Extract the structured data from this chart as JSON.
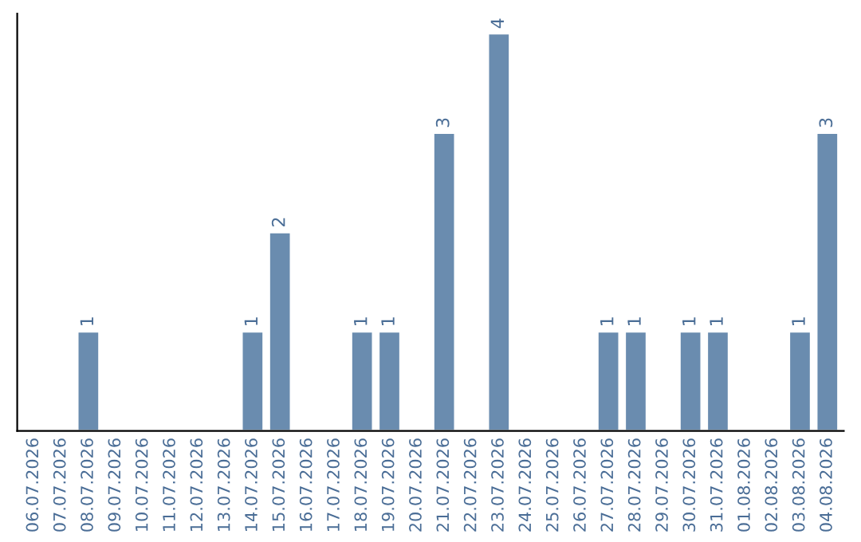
{
  "chart_data": {
    "type": "bar",
    "categories": [
      "06.07.2026",
      "07.07.2026",
      "08.07.2026",
      "09.07.2026",
      "10.07.2026",
      "11.07.2026",
      "12.07.2026",
      "13.07.2026",
      "14.07.2026",
      "15.07.2026",
      "16.07.2026",
      "17.07.2026",
      "18.07.2026",
      "19.07.2026",
      "20.07.2026",
      "21.07.2026",
      "22.07.2026",
      "23.07.2026",
      "24.07.2026",
      "25.07.2026",
      "26.07.2026",
      "27.07.2026",
      "28.07.2026",
      "29.07.2026",
      "30.07.2026",
      "31.07.2026",
      "01.08.2026",
      "02.08.2026",
      "03.08.2026",
      "04.08.2026"
    ],
    "values": [
      null,
      null,
      1,
      null,
      null,
      null,
      null,
      null,
      1,
      2,
      null,
      null,
      1,
      1,
      null,
      3,
      null,
      4,
      null,
      null,
      null,
      1,
      1,
      null,
      1,
      1,
      null,
      null,
      1,
      3
    ],
    "value_labels": [
      null,
      null,
      "1",
      null,
      null,
      null,
      null,
      null,
      "1",
      "2",
      null,
      null,
      "1",
      "1",
      null,
      "3",
      null,
      "4",
      null,
      null,
      null,
      "1",
      "1",
      null,
      "1",
      "1",
      null,
      null,
      "1",
      "3"
    ],
    "color": "#6a8caf",
    "grid": false,
    "legend": false
  }
}
